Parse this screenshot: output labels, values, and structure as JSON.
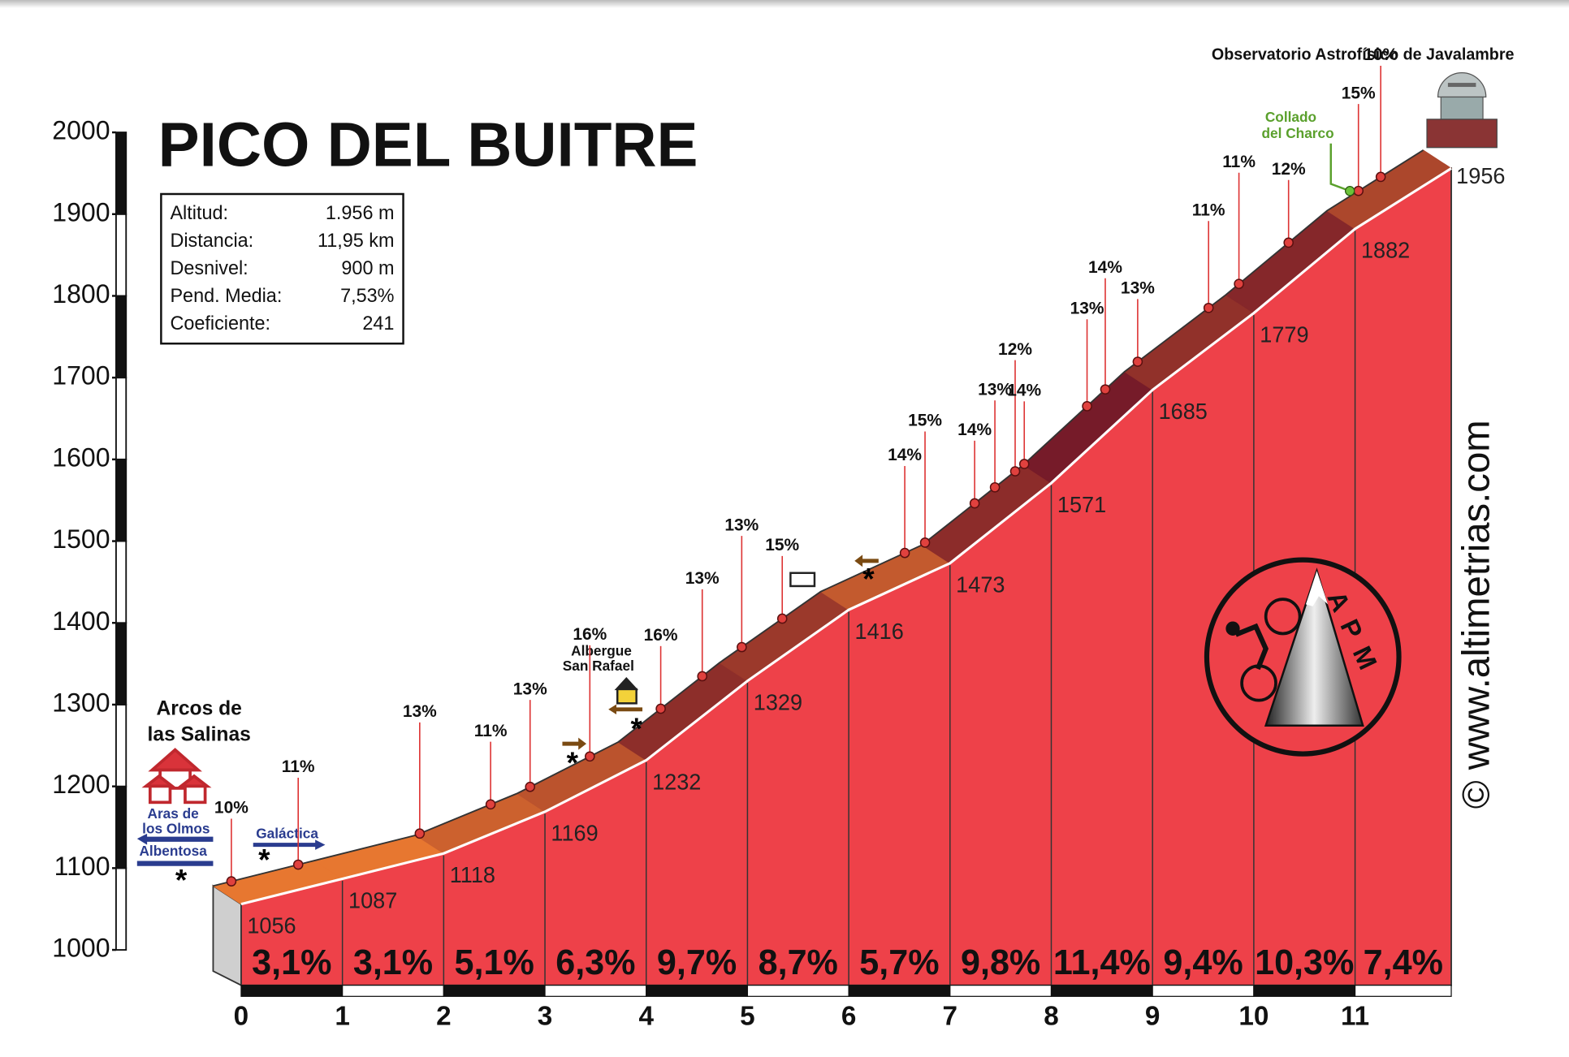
{
  "chart_data": {
    "type": "profile",
    "title": "PICO DEL BUITRE",
    "stats": [
      {
        "label": "Altitud:",
        "value": "1.956 m"
      },
      {
        "label": "Distancia:",
        "value": "11,95 km"
      },
      {
        "label": "Desnivel:",
        "value": "900 m"
      },
      {
        "label": "Pend. Media:",
        "value": "7,53%"
      },
      {
        "label": "Coeficiente:",
        "value": "241"
      }
    ],
    "x": [
      0,
      1,
      2,
      3,
      4,
      5,
      6,
      7,
      8,
      9,
      10,
      11,
      11.95
    ],
    "altitudes": [
      1056,
      1087,
      1118,
      1169,
      1232,
      1329,
      1416,
      1473,
      1571,
      1685,
      1779,
      1882,
      1956
    ],
    "xlim": [
      0,
      11.95
    ],
    "xticks": [
      0,
      1,
      2,
      3,
      4,
      5,
      6,
      7,
      8,
      9,
      10,
      11
    ],
    "ylim": [
      1000,
      2000
    ],
    "yticks": [
      1000,
      1100,
      1200,
      1300,
      1400,
      1500,
      1600,
      1700,
      1800,
      1900,
      2000
    ],
    "segments": {
      "values": [
        3.1,
        3.1,
        5.1,
        6.3,
        9.7,
        8.7,
        5.7,
        9.8,
        11.4,
        9.4,
        10.3,
        7.4
      ],
      "value_labels": [
        "3,1%",
        "3,1%",
        "5,1%",
        "6,3%",
        "9,7%",
        "8,7%",
        "5,7%",
        "9,8%",
        "11,4%",
        "9,4%",
        "10,3%",
        "7,4%"
      ]
    },
    "markers": [
      {
        "x": 0.18,
        "label": "10%"
      },
      {
        "x": 0.84,
        "label": "11%"
      },
      {
        "x": 2.04,
        "label": "13%"
      },
      {
        "x": 2.74,
        "label": "11%"
      },
      {
        "x": 3.13,
        "label": "13%"
      },
      {
        "x": 3.72,
        "label": "16%"
      },
      {
        "x": 4.42,
        "label": "16%"
      },
      {
        "x": 4.83,
        "label": "13%"
      },
      {
        "x": 5.22,
        "label": "13%"
      },
      {
        "x": 5.62,
        "label": "15%"
      },
      {
        "x": 6.83,
        "label": "14%"
      },
      {
        "x": 7.03,
        "label": "15%"
      },
      {
        "x": 7.52,
        "label": "14%"
      },
      {
        "x": 7.72,
        "label": "13%"
      },
      {
        "x": 7.92,
        "label": "12%"
      },
      {
        "x": 8.01,
        "label": "14%"
      },
      {
        "x": 8.63,
        "label": "13%"
      },
      {
        "x": 8.81,
        "label": "14%"
      },
      {
        "x": 9.13,
        "label": "13%"
      },
      {
        "x": 9.83,
        "label": "11%"
      },
      {
        "x": 10.13,
        "label": "11%"
      },
      {
        "x": 10.62,
        "label": "12%"
      },
      {
        "x": 11.31,
        "label": "15%"
      },
      {
        "x": 11.53,
        "label": "10%"
      }
    ],
    "places": {
      "start": [
        "Arcos de",
        "las Salinas"
      ],
      "aras": [
        "Aras de",
        "los Olmos"
      ],
      "albentosa": "Albentosa",
      "galactica": "Galáctica",
      "albergue": [
        "Albergue",
        "San Rafael"
      ],
      "collado": [
        "Collado",
        "del Charco"
      ],
      "observatorio": "Observatorio Astrofísico de Javalambre",
      "logo": "APM",
      "site": "© www.altimetrias.com"
    }
  }
}
